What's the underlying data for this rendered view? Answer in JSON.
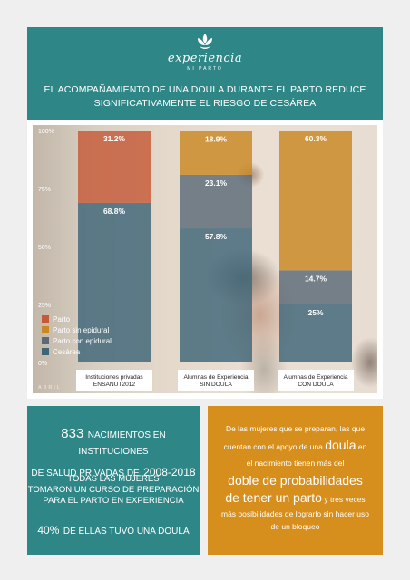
{
  "brand": {
    "name": "experiencia",
    "tagline": "MI PARTO"
  },
  "headline": {
    "line1": "EL ACOMPAÑAMIENTO DE UNA DOULA DURANTE EL PARTO REDUCE",
    "line2": "SIGNIFICATIVAMENTE EL RIESGO DE CESÁREA"
  },
  "photo_credit": "ABRIL",
  "colors": {
    "header": "#2f8686",
    "right_box": "#d68e1d"
  },
  "chart_data": {
    "type": "bar",
    "stacked": true,
    "categories": [
      [
        "Instituciones privadas",
        "ENSANUT2012"
      ],
      [
        "Alumnas de Experiencia",
        "SIN DOULA"
      ],
      [
        "Alumnas de Experiencia",
        "CON DOULA"
      ]
    ],
    "y_ticks": [
      "0%",
      "25%",
      "50%",
      "75%",
      "100%"
    ],
    "ylim": [
      0,
      100
    ],
    "legend_position": "bottom-left",
    "series": [
      {
        "name": "Cesárea",
        "color": "#3e6578",
        "values": [
          68.8,
          57.8,
          25
        ]
      },
      {
        "name": "Parto con epidural",
        "color": "#5c6a78",
        "values": [
          0,
          23.1,
          14.7
        ]
      },
      {
        "name": "Parto sin epidural",
        "color": "#c98822",
        "values": [
          0,
          18.9,
          60.3
        ]
      },
      {
        "name": "Parto",
        "color": "#c65a38",
        "values": [
          31.2,
          0,
          0
        ]
      }
    ],
    "data_labels": [
      [
        "68.8%",
        "",
        "",
        "31.2%"
      ],
      [
        "57.8%",
        "23.1%",
        "18.9%",
        ""
      ],
      [
        "25%",
        "14.7%",
        "60.3%",
        ""
      ]
    ],
    "legend_order": [
      "Parto",
      "Parto sin epidural",
      "Parto con epidural",
      "Cesárea"
    ]
  },
  "left_box": {
    "p1_num": "833",
    "p1_a": "NACIMIENTOS EN INSTITUCIONES",
    "p1_b": "DE SALUD PRIVADAS DE",
    "p1_years": "2008-2018",
    "p2_l1": "TODAS LAS MUJERES",
    "p2_l2": "TOMARON UN CURSO DE PREPARACIÓN",
    "p2_l3": "PARA EL PARTO EN EXPERIENCIA",
    "p3_pct": "40%",
    "p3_rest": "DE ELLAS  TUVO UNA DOULA"
  },
  "right_box": {
    "l1": "De las mujeres que se preparan, las que",
    "l2_a": "cuentan con el apoyo de una",
    "l2_big": "doula",
    "l2_b": "en",
    "l3": "el nacimiento tienen más del",
    "l4": "doble de probabilidades",
    "l5_big": "de tener un parto",
    "l5_small": "y tres veces",
    "l6": "más posibilidades de lograrlo sin hacer uso",
    "l7": "de un bloqueo"
  }
}
